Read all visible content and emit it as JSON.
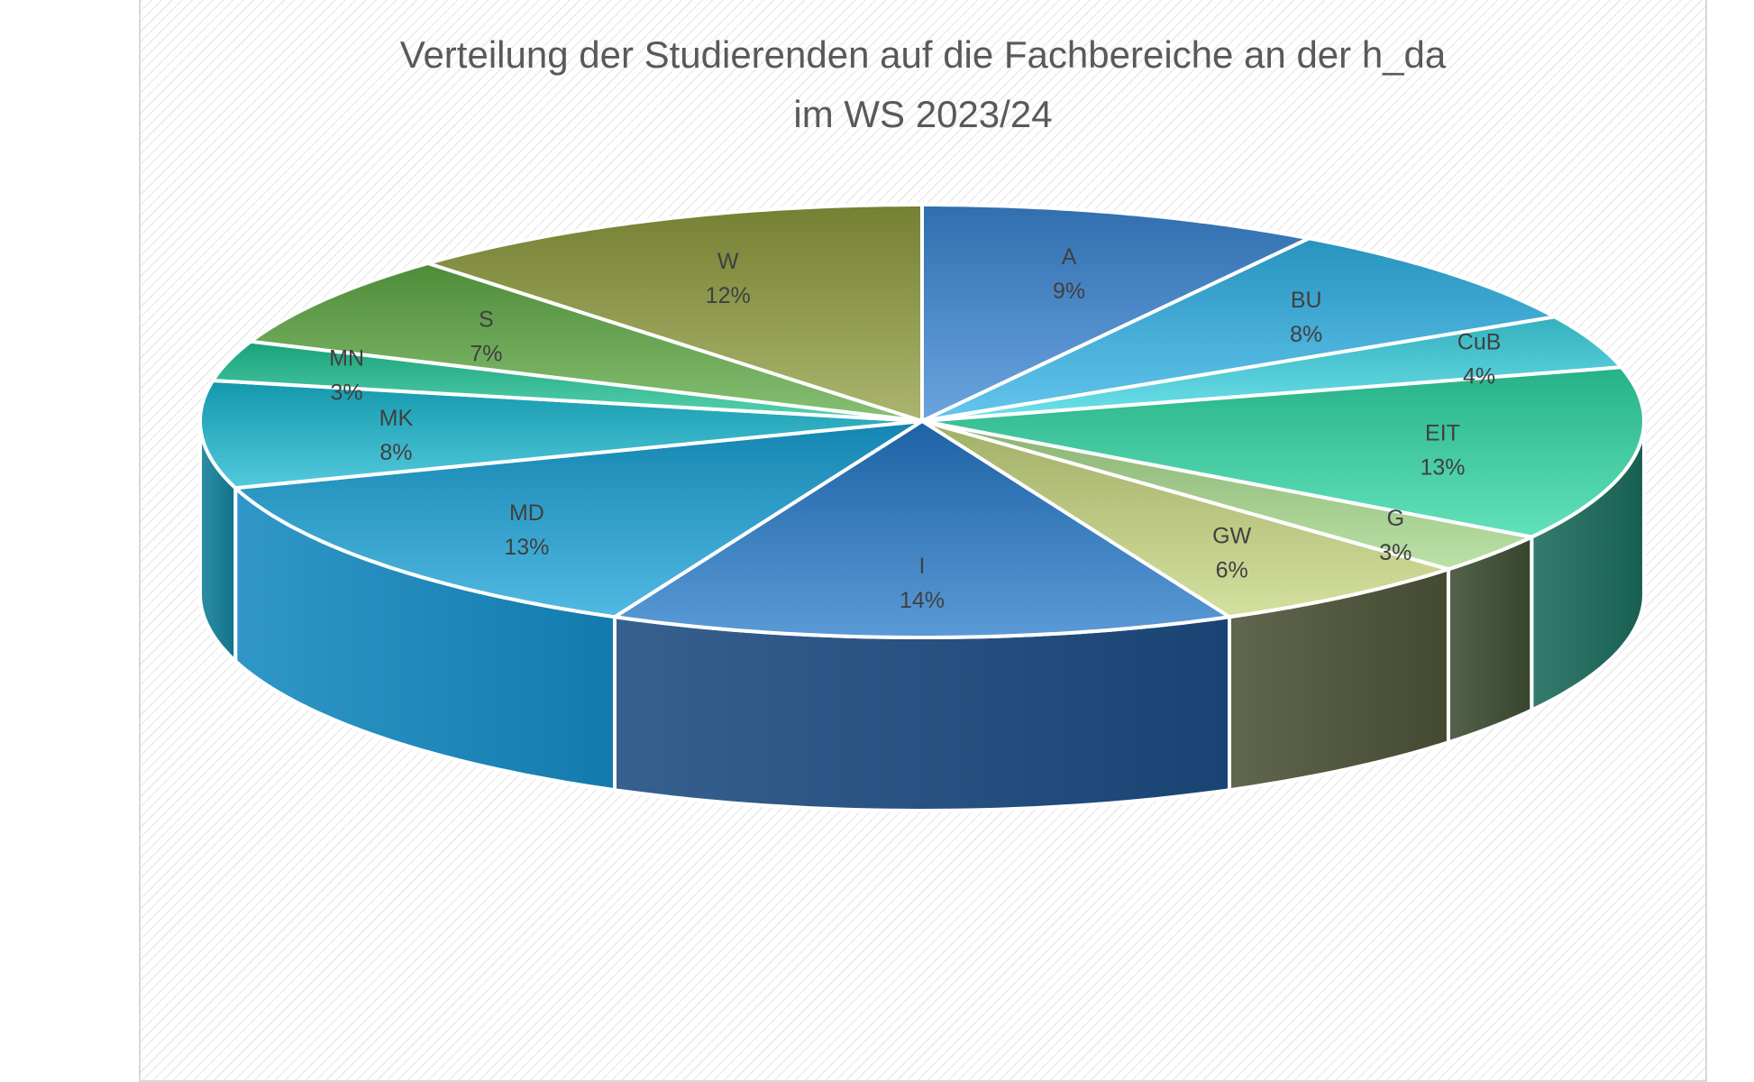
{
  "chart_data": {
    "type": "pie",
    "title_line1": "Verteilung der Studierenden auf die Fachbereiche an der h_da",
    "title_line2": "im WS 2023/24",
    "categories": [
      "A",
      "BU",
      "CuB",
      "EIT",
      "G",
      "GW",
      "I",
      "MD",
      "MK",
      "MN",
      "S",
      "W"
    ],
    "values": [
      9,
      8,
      4,
      13,
      3,
      6,
      14,
      13,
      8,
      3,
      7,
      12
    ],
    "value_labels": [
      "9%",
      "8%",
      "4%",
      "13%",
      "3%",
      "6%",
      "14%",
      "13%",
      "8%",
      "3%",
      "7%",
      "12%"
    ],
    "colors": [
      "#3a86d6",
      "#2fb3e8",
      "#3ed8e6",
      "#2ed8a3",
      "#a6d88a",
      "#c6d67e",
      "#2378c9",
      "#17a2d8",
      "#18b8d0",
      "#1fc495",
      "#5fab46",
      "#8f9c3e"
    ],
    "side_colors": [
      "#1d4f86",
      "#1c5f8a",
      "#1a6f7a",
      "#1a6a5a",
      "#3d4d33",
      "#4b5236",
      "#1c4a80",
      "#1489c0",
      "#137f99",
      "#167f6a",
      "#3d7a2e",
      "#5e6a2b"
    ],
    "start_angle": "top",
    "direction": "clockwise",
    "style": "3d-perspective",
    "legend": "none"
  }
}
